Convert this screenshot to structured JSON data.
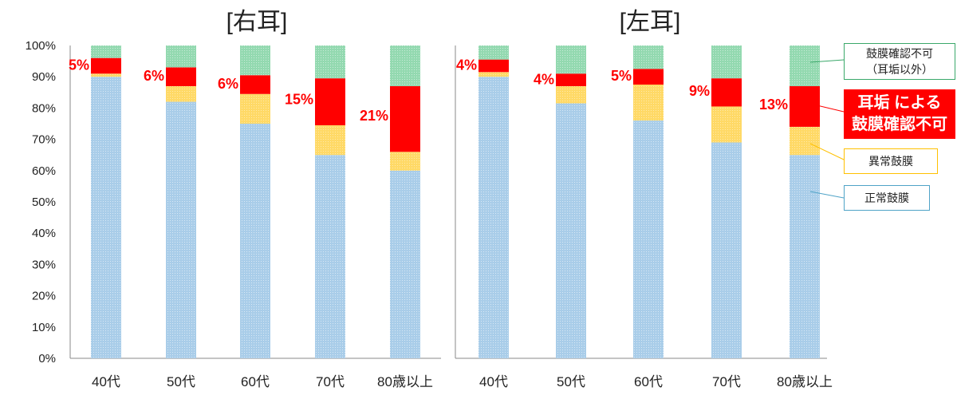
{
  "chart_data": {
    "type": "bar",
    "stacked": true,
    "yticks": [
      "0%",
      "10%",
      "20%",
      "30%",
      "40%",
      "50%",
      "60%",
      "70%",
      "80%",
      "90%",
      "100%"
    ],
    "ylim": [
      0,
      100
    ],
    "grid": false,
    "categories": [
      "40代",
      "50代",
      "60代",
      "70代",
      "80歳以上"
    ],
    "colors": {
      "normal": "#a9cde9",
      "abnormal": "#ffd966",
      "earwax": "#ff0000",
      "other": "#93d9b0"
    },
    "panels": [
      {
        "title": "[右耳]",
        "series": [
          {
            "key": "normal",
            "values": [
              90,
              82,
              75,
              65,
              60
            ]
          },
          {
            "key": "abnormal",
            "values": [
              1,
              5,
              9.5,
              9.5,
              6
            ]
          },
          {
            "key": "earwax",
            "values": [
              5,
              6,
              6,
              15,
              21
            ]
          },
          {
            "key": "other",
            "values": [
              4,
              7,
              9.5,
              10.5,
              13
            ]
          }
        ],
        "data_labels": [
          "5%",
          "6%",
          "6%",
          "15%",
          "21%"
        ]
      },
      {
        "title": "[左耳]",
        "series": [
          {
            "key": "normal",
            "values": [
              90,
              81.5,
              76,
              69,
              65
            ]
          },
          {
            "key": "abnormal",
            "values": [
              1.5,
              5.5,
              11.5,
              11.5,
              9
            ]
          },
          {
            "key": "earwax",
            "values": [
              4,
              4,
              5,
              9,
              13
            ]
          },
          {
            "key": "other",
            "values": [
              4.5,
              9,
              7.5,
              10.5,
              13
            ]
          }
        ],
        "data_labels": [
          "4%",
          "4%",
          "5%",
          "9%",
          "13%"
        ]
      }
    ],
    "legend": {
      "other_line1": "鼓膜確認不可",
      "other_line2": "（耳垢以外）",
      "earwax_line1": "耳垢 による",
      "earwax_line2": "鼓膜確認不可",
      "abnormal": "異常鼓膜",
      "normal": "正常鼓膜"
    }
  }
}
